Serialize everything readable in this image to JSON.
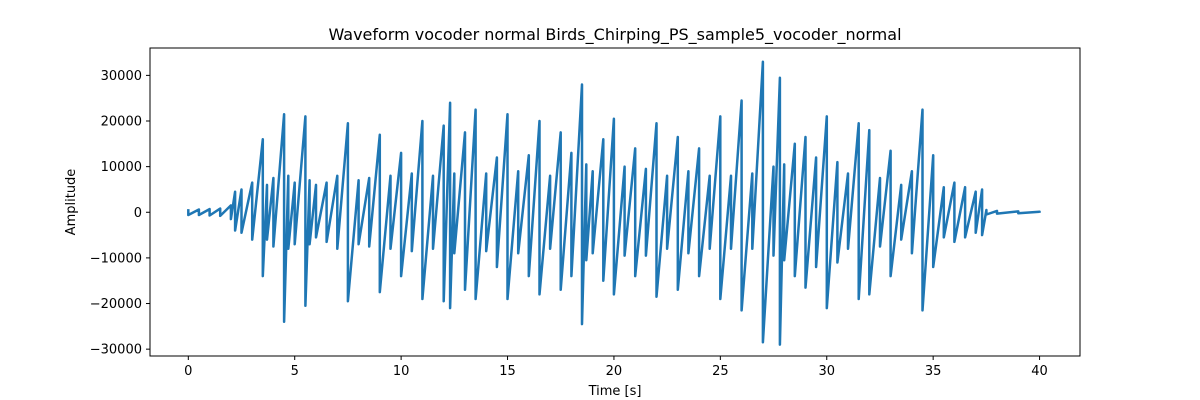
{
  "chart_data": {
    "type": "line",
    "title": "Waveform vocoder normal Birds_Chirping_PS_sample5_vocoder_normal",
    "xlabel": "Time [s]",
    "ylabel": "Amplitude",
    "xlim": [
      -1.8,
      41.9
    ],
    "ylim": [
      -31500,
      36000
    ],
    "grid": false,
    "legend": "none",
    "x_ticks": [
      {
        "value": 0,
        "label": "0"
      },
      {
        "value": 5,
        "label": "5"
      },
      {
        "value": 10,
        "label": "10"
      },
      {
        "value": 15,
        "label": "15"
      },
      {
        "value": 20,
        "label": "20"
      },
      {
        "value": 25,
        "label": "25"
      },
      {
        "value": 30,
        "label": "30"
      },
      {
        "value": 35,
        "label": "35"
      },
      {
        "value": 40,
        "label": "40"
      }
    ],
    "y_ticks": [
      {
        "value": -30000,
        "label": "−30000"
      },
      {
        "value": -20000,
        "label": "−20000"
      },
      {
        "value": -10000,
        "label": "−10000"
      },
      {
        "value": 0,
        "label": "0"
      },
      {
        "value": 10000,
        "label": "10000"
      },
      {
        "value": 20000,
        "label": "20000"
      },
      {
        "value": 30000,
        "label": "30000"
      }
    ],
    "series": [
      {
        "color": "#1f77b4",
        "x": [
          0.0,
          0.5,
          1.0,
          1.5,
          2.0,
          2.2,
          2.5,
          3.0,
          3.5,
          3.7,
          4.0,
          4.5,
          4.7,
          5.0,
          5.5,
          5.7,
          6.0,
          6.5,
          7.0,
          7.5,
          8.0,
          8.5,
          9.0,
          9.5,
          10.0,
          10.5,
          11.0,
          11.5,
          12.0,
          12.3,
          12.5,
          13.0,
          13.5,
          14.0,
          14.5,
          15.0,
          15.5,
          16.0,
          16.5,
          17.0,
          17.5,
          18.0,
          18.5,
          18.7,
          19.0,
          19.5,
          20.0,
          20.5,
          21.0,
          21.5,
          22.0,
          22.5,
          23.0,
          23.5,
          24.0,
          24.5,
          25.0,
          25.5,
          26.0,
          26.5,
          27.0,
          27.5,
          27.8,
          28.0,
          28.5,
          29.0,
          29.5,
          30.0,
          30.5,
          31.0,
          31.5,
          32.0,
          32.5,
          33.0,
          33.5,
          34.0,
          34.5,
          35.0,
          35.5,
          36.0,
          36.5,
          37.0,
          37.3,
          37.5,
          38.0,
          39.0,
          40.0
        ],
        "y_max": [
          700,
          600,
          700,
          800,
          1500,
          4500,
          5000,
          6500,
          16000,
          6000,
          7500,
          21500,
          8000,
          6500,
          21000,
          7000,
          6000,
          6500,
          8000,
          19500,
          7000,
          7500,
          17000,
          8000,
          13000,
          8500,
          20000,
          8000,
          19000,
          24000,
          8500,
          17500,
          22500,
          8500,
          12000,
          21500,
          9000,
          12500,
          20000,
          8000,
          17500,
          13000,
          28000,
          10500,
          9000,
          16000,
          20500,
          10000,
          14000,
          9500,
          19500,
          8000,
          16500,
          9000,
          14000,
          8000,
          21000,
          8000,
          24500,
          8500,
          33000,
          10000,
          29500,
          10500,
          15000,
          16500,
          12000,
          21000,
          11000,
          8500,
          19500,
          18000,
          7500,
          13500,
          6000,
          9000,
          22500,
          12500,
          5500,
          6500,
          5500,
          4500,
          5000,
          500,
          300,
          200,
          100
        ],
        "y_min": [
          -600,
          -600,
          -700,
          -800,
          -1500,
          -4000,
          -4500,
          -6000,
          -14000,
          -6000,
          -7500,
          -24000,
          -8000,
          -7000,
          -20500,
          -7000,
          -5500,
          -6500,
          -8000,
          -19500,
          -7000,
          -7500,
          -17500,
          -8000,
          -14000,
          -8500,
          -19000,
          -8000,
          -19500,
          -21000,
          -9000,
          -17000,
          -19000,
          -8500,
          -12000,
          -19000,
          -9000,
          -14000,
          -18000,
          -8000,
          -17000,
          -14000,
          -24500,
          -10500,
          -9000,
          -15000,
          -18000,
          -9500,
          -14000,
          -9500,
          -18500,
          -8000,
          -17000,
          -9000,
          -14000,
          -8000,
          -19000,
          -8000,
          -21500,
          -8000,
          -28500,
          -9500,
          -29000,
          -10500,
          -14000,
          -16500,
          -12000,
          -21000,
          -11000,
          -8000,
          -19000,
          -18000,
          -7500,
          -14000,
          -6000,
          -9000,
          -21500,
          -12000,
          -5500,
          -6500,
          -5500,
          -4500,
          -5000,
          -500,
          -300,
          -200,
          -100
        ]
      }
    ]
  }
}
